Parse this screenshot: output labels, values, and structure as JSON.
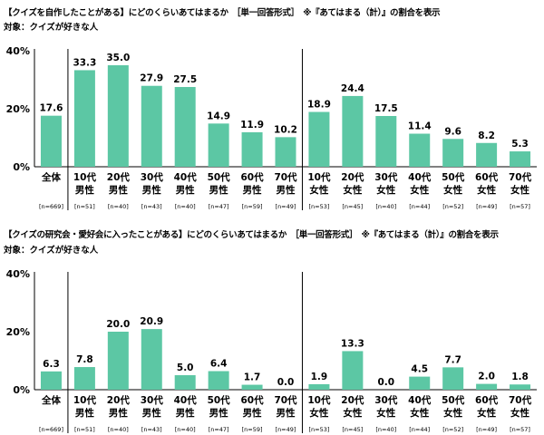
{
  "colors": {
    "bar": "#5cc7a4",
    "axis": "#000000",
    "divider": "#000000"
  },
  "chart_data": [
    {
      "type": "bar",
      "title": "【クイズを自作したことがある】にどのくらいあてはまるか　［単一回答形式］　※『あてはまる（計）』の割合を表示",
      "subtitle": "対象：クイズが好きな人",
      "categories": [
        [
          "全体"
        ],
        [
          "10代",
          "男性"
        ],
        [
          "20代",
          "男性"
        ],
        [
          "30代",
          "男性"
        ],
        [
          "40代",
          "男性"
        ],
        [
          "50代",
          "男性"
        ],
        [
          "60代",
          "男性"
        ],
        [
          "70代",
          "男性"
        ],
        [
          "10代",
          "女性"
        ],
        [
          "20代",
          "女性"
        ],
        [
          "30代",
          "女性"
        ],
        [
          "40代",
          "女性"
        ],
        [
          "50代",
          "女性"
        ],
        [
          "60代",
          "女性"
        ],
        [
          "70代",
          "女性"
        ]
      ],
      "n_labels": [
        "[n=669]",
        "[n=51]",
        "[n=40]",
        "[n=43]",
        "[n=40]",
        "[n=47]",
        "[n=59]",
        "[n=49]",
        "[n=53]",
        "[n=45]",
        "[n=40]",
        "[n=44]",
        "[n=52]",
        "[n=49]",
        "[n=57]"
      ],
      "values": [
        17.6,
        33.3,
        35.0,
        27.9,
        27.5,
        14.9,
        11.9,
        10.2,
        18.9,
        24.4,
        17.5,
        11.4,
        9.6,
        8.2,
        5.3
      ],
      "value_labels": [
        "17.6",
        "33.3",
        "35.0",
        "27.9",
        "27.5",
        "14.9",
        "11.9",
        "10.2",
        "18.9",
        "24.4",
        "17.5",
        "11.4",
        "9.6",
        "8.2",
        "5.3"
      ],
      "yticks": [
        "40%",
        "20%",
        "0%"
      ],
      "ylim": [
        0,
        40
      ],
      "grid": false,
      "dividers_after_index": [
        0,
        7
      ]
    },
    {
      "type": "bar",
      "title": "【クイズの研究会・愛好会に入ったことがある】にどのくらいあてはまるか　［単一回答形式］　※『あてはまる（計）』の割合を表示",
      "subtitle": "対象：クイズが好きな人",
      "categories": [
        [
          "全体"
        ],
        [
          "10代",
          "男性"
        ],
        [
          "20代",
          "男性"
        ],
        [
          "30代",
          "男性"
        ],
        [
          "40代",
          "男性"
        ],
        [
          "50代",
          "男性"
        ],
        [
          "60代",
          "男性"
        ],
        [
          "70代",
          "男性"
        ],
        [
          "10代",
          "女性"
        ],
        [
          "20代",
          "女性"
        ],
        [
          "30代",
          "女性"
        ],
        [
          "40代",
          "女性"
        ],
        [
          "50代",
          "女性"
        ],
        [
          "60代",
          "女性"
        ],
        [
          "70代",
          "女性"
        ]
      ],
      "n_labels": [
        "[n=669]",
        "[n=51]",
        "[n=40]",
        "[n=43]",
        "[n=40]",
        "[n=47]",
        "[n=59]",
        "[n=49]",
        "[n=53]",
        "[n=45]",
        "[n=40]",
        "[n=44]",
        "[n=52]",
        "[n=49]",
        "[n=57]"
      ],
      "values": [
        6.3,
        7.8,
        20.0,
        20.9,
        5.0,
        6.4,
        1.7,
        0.0,
        1.9,
        13.3,
        0.0,
        4.5,
        7.7,
        2.0,
        1.8
      ],
      "value_labels": [
        "6.3",
        "7.8",
        "20.0",
        "20.9",
        "5.0",
        "6.4",
        "1.7",
        "0.0",
        "1.9",
        "13.3",
        "0.0",
        "4.5",
        "7.7",
        "2.0",
        "1.8"
      ],
      "yticks": [
        "40%",
        "20%",
        "0%"
      ],
      "ylim": [
        0,
        40
      ],
      "grid": false,
      "dividers_after_index": [
        0,
        7
      ]
    }
  ]
}
